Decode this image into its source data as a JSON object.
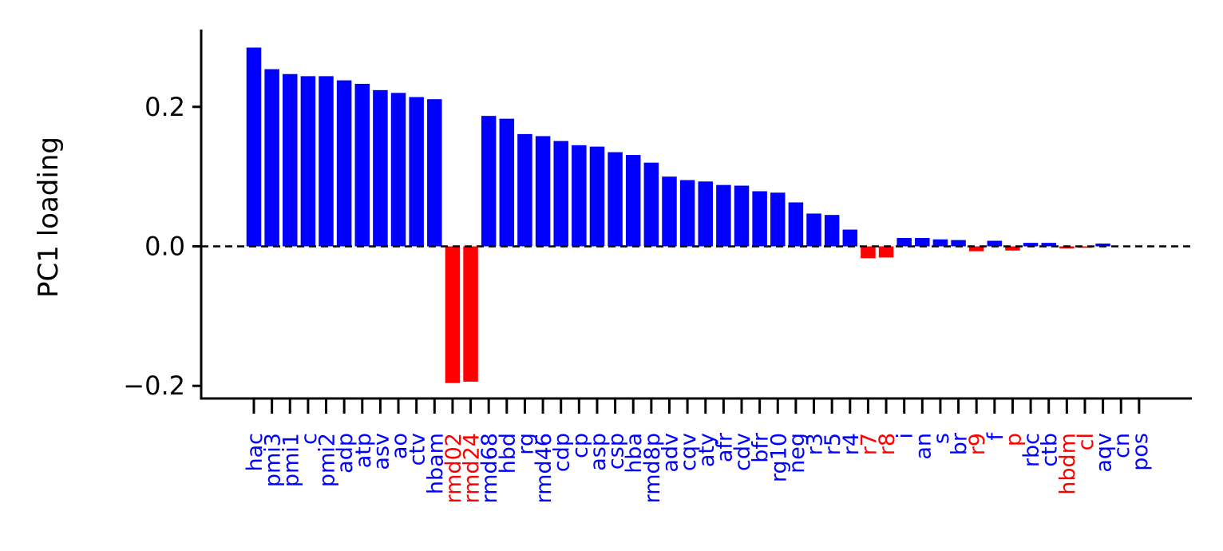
{
  "chart_data": {
    "type": "bar",
    "title": "",
    "xlabel": "",
    "ylabel": "PC1 loading",
    "ylim": [
      -0.22,
      0.31
    ],
    "yticks": [
      -0.2,
      0.0,
      0.2
    ],
    "ytick_labels": [
      "−0.2",
      "0.0",
      "0.2"
    ],
    "zero_line": "dashed",
    "grid": false,
    "colors": {
      "positive": "#0000ff",
      "negative": "#ff0000",
      "axis": "#000000"
    },
    "categories": [
      "hac",
      "pmi3",
      "pmi1",
      "c",
      "pmi2",
      "adp",
      "atp",
      "asv",
      "ao",
      "ctv",
      "hbam",
      "rmd02",
      "rmd24",
      "rmd68",
      "hbd",
      "rg",
      "rmd46",
      "cdp",
      "cp",
      "asp",
      "csp",
      "hba",
      "rmd8p",
      "adv",
      "cqv",
      "aty",
      "afr",
      "cdv",
      "bfr",
      "rg10",
      "neg",
      "r3",
      "r5",
      "r4",
      "r7",
      "r8",
      "i",
      "an",
      "s",
      "br",
      "r9",
      "f",
      "p",
      "rbc",
      "ctb",
      "hbdm",
      "cl",
      "aqv",
      "cn",
      "pos"
    ],
    "values": [
      0.285,
      0.254,
      0.247,
      0.244,
      0.244,
      0.238,
      0.233,
      0.224,
      0.22,
      0.214,
      0.211,
      -0.196,
      -0.194,
      0.187,
      0.183,
      0.161,
      0.158,
      0.151,
      0.145,
      0.143,
      0.135,
      0.131,
      0.12,
      0.1,
      0.095,
      0.093,
      0.088,
      0.087,
      0.079,
      0.077,
      0.063,
      0.047,
      0.045,
      0.024,
      -0.017,
      -0.016,
      0.012,
      0.012,
      0.01,
      0.009,
      -0.007,
      0.008,
      -0.006,
      0.005,
      0.005,
      -0.003,
      -0.002,
      0.004,
      0.0,
      0.0
    ]
  }
}
